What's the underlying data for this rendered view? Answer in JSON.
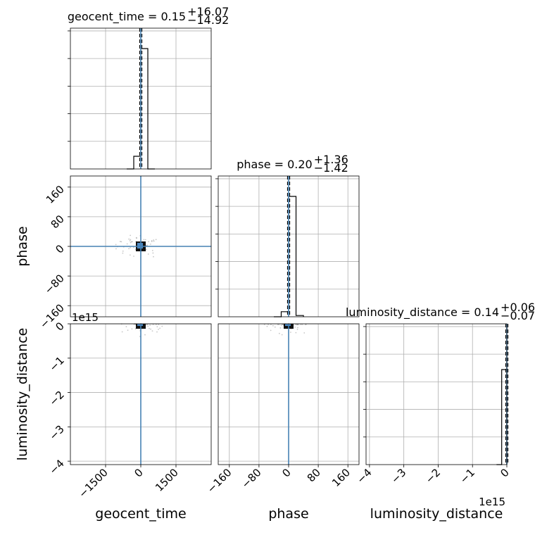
{
  "chart_data": {
    "type": "corner",
    "parameters": [
      "geocent_time",
      "phase",
      "luminosity_distance"
    ],
    "titles": [
      {
        "param": "geocent_time",
        "median": "0.15",
        "plus": "+16.07",
        "minus": "−14.92"
      },
      {
        "param": "phase",
        "median": "0.20",
        "plus": "+1.36",
        "minus": "−1.42"
      },
      {
        "param": "luminosity_distance",
        "median": "0.14",
        "plus": "+0.06",
        "minus": "−0.07"
      }
    ],
    "axes": {
      "geocent_time": {
        "range": [
          -3000,
          3000
        ],
        "ticks": [
          -1500,
          0,
          1500
        ],
        "tick_labels": [
          "−1500",
          "0",
          "1500"
        ]
      },
      "phase": {
        "range": [
          -190,
          190
        ],
        "ticks": [
          -160,
          -80,
          0,
          80,
          160
        ],
        "tick_labels": [
          "−160",
          "−80",
          "0",
          "80",
          "160"
        ]
      },
      "luminosity_distance": {
        "range": [
          -4.1,
          0
        ],
        "ticks": [
          -4,
          -3,
          -2,
          -1,
          0
        ],
        "tick_labels": [
          "−4",
          "−3",
          "−2",
          "−1",
          "0"
        ],
        "offset_text": "1e15"
      }
    },
    "truths": {
      "geocent_time": 0,
      "phase": 0,
      "luminosity_distance": 0
    },
    "histograms": {
      "geocent_time": {
        "edges": [
          -600,
          -300,
          0,
          300,
          600
        ],
        "heights": [
          0.0,
          0.1,
          0.95,
          0.0
        ]
      },
      "phase": {
        "edges": [
          -40,
          -20,
          0,
          20,
          40
        ],
        "heights": [
          0.0,
          0.04,
          0.95,
          0.01
        ]
      },
      "luminosity_distance": {
        "edges": [
          -0.3,
          -0.15,
          0
        ],
        "heights": [
          0.0,
          0.75
        ]
      }
    },
    "grid": true
  }
}
